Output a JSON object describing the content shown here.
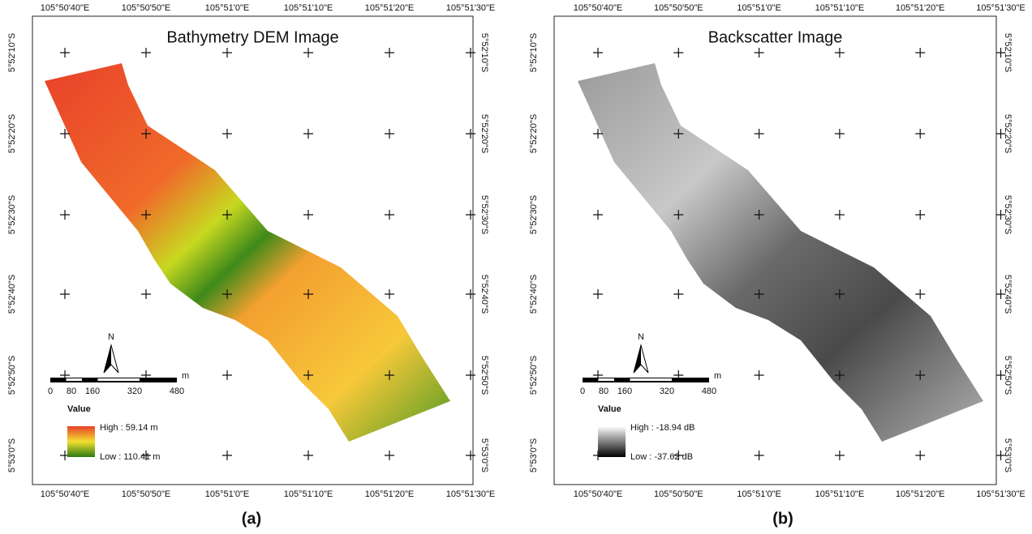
{
  "panels": [
    {
      "title": "Bathymetry DEM Image",
      "top_labels": [
        "105°50'40\"E",
        "105°50'50\"E",
        "105°51'0\"E",
        "105°51'10\"E",
        "105°51'20\"E",
        "105°51'30\"E"
      ],
      "bottom_labels": [
        "105°50'40\"E",
        "105°50'50\"E",
        "105°51'0\"E",
        "105°51'10\"E",
        "105°51'20\"E",
        "105°51'30\"E"
      ],
      "left_labels": [
        "5°52'10\"S",
        "5°52'20\"S",
        "5°52'30\"S",
        "5°52'40\"S",
        "5°52'50\"S",
        "5°53'0\"S"
      ],
      "right_labels": [
        "5°52'10\"S",
        "5°52'20\"S",
        "5°52'30\"S",
        "5°52'40\"S",
        "5°52'50\"S",
        "5°53'0\"S"
      ],
      "north": "N",
      "scale_labels": [
        "0",
        "80",
        "160",
        "320",
        "480"
      ],
      "scale_unit": "m",
      "legend_title": "Value",
      "legend_high": "High : 59.14 m",
      "legend_low": "Low : 110.41 m",
      "caption": "(a)"
    },
    {
      "title": "Backscatter Image",
      "top_labels": [
        "105°50'40\"E",
        "105°50'50\"E",
        "105°51'0\"E",
        "105°51'10\"E",
        "105°51'20\"E",
        "105°51'30\"E"
      ],
      "bottom_labels": [
        "105°50'40\"E",
        "105°50'50\"E",
        "105°51'0\"E",
        "105°51'10\"E",
        "105°51'20\"E",
        "105°51'30\"E"
      ],
      "left_labels": [
        "5°52'10\"S",
        "5°52'20\"S",
        "5°52'30\"S",
        "5°52'40\"S",
        "5°52'50\"S",
        "5°53'0\"S"
      ],
      "right_labels": [
        "5°52'10\"S",
        "5°52'20\"S",
        "5°52'30\"S",
        "5°52'40\"S",
        "5°52'50\"S",
        "5°53'0\"S"
      ],
      "north": "N",
      "scale_labels": [
        "0",
        "80",
        "160",
        "320",
        "480"
      ],
      "scale_unit": "m",
      "legend_title": "Value",
      "legend_high": "High : -18.94 dB",
      "legend_low": "Low : -37.62 dB",
      "caption": "(b)"
    }
  ]
}
